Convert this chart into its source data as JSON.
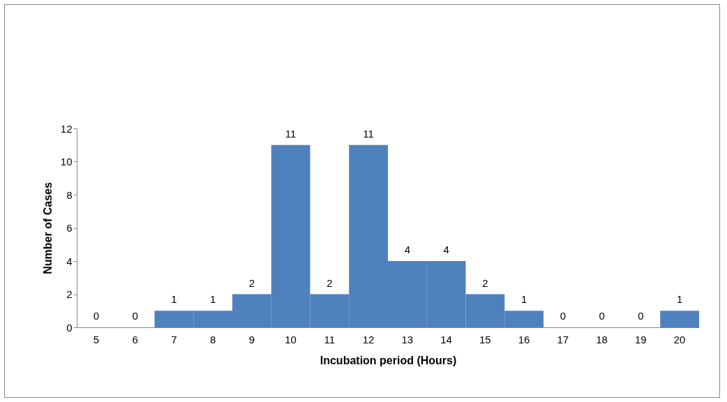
{
  "chart_data": {
    "type": "bar",
    "xlabel": "Incubation period (Hours)",
    "ylabel": "Number of Cases",
    "categories": [
      "5",
      "6",
      "7",
      "8",
      "9",
      "10",
      "11",
      "12",
      "13",
      "14",
      "15",
      "16",
      "17",
      "18",
      "19",
      "20"
    ],
    "values": [
      0,
      0,
      1,
      1,
      2,
      11,
      2,
      11,
      4,
      4,
      2,
      1,
      0,
      0,
      0,
      1
    ],
    "color": "#4f81bd",
    "ylim": [
      0,
      12
    ],
    "yticks": [
      0,
      2,
      4,
      6,
      8,
      10,
      12
    ],
    "data_labels": true
  }
}
